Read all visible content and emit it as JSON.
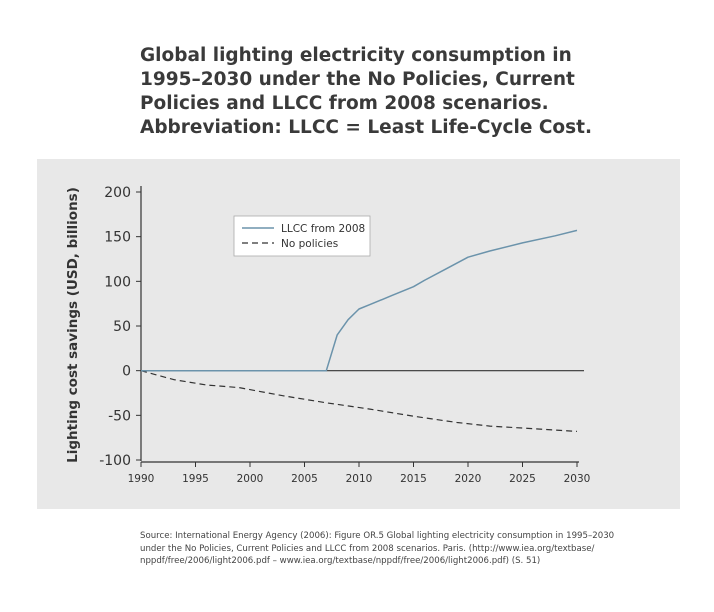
{
  "title_lines": [
    "Global lighting electricity consumption in",
    "1995–2030 under the No Policies, Current",
    "Policies and LLCC from 2008 scenarios.",
    "Abbreviation: LLCC = Least Life-Cycle Cost."
  ],
  "source_lines": [
    "Source: International Energy Agency (2006): Figure OR.5 Global lighting electricity consumption in 1995–2030",
    "under the No Policies, Current Policies and LLCC from 2008 scenarios. Paris. (http://www.iea.org/textbase/",
    "nppdf/free/2006/light2006.pdf – www.iea.org/textbase/nppdf/free/2006/light2006.pdf)  (S. 51)"
  ],
  "colors": {
    "llcc_line": "#6b93ab",
    "no_policies_line": "#333333",
    "panel_bg": "#e8e8e8"
  },
  "chart_data": {
    "type": "line",
    "title": "Global lighting electricity consumption in 1995–2030 under the No Policies, Current Policies and LLCC from 2008 scenarios. Abbreviation: LLCC = Least Life-Cycle Cost.",
    "xlabel": "",
    "ylabel": "Lighting cost savings (USD, billions)",
    "xlim": [
      1990,
      2030
    ],
    "ylim": [
      -100,
      200
    ],
    "xticks": [
      1990,
      1995,
      2000,
      2005,
      2010,
      2015,
      2020,
      2025,
      2030
    ],
    "yticks": [
      200,
      150,
      100,
      50,
      0,
      -50,
      -100
    ],
    "xtick_labels": [
      "1990",
      "1995",
      "2000",
      "2005",
      "2010",
      "2015",
      "2020",
      "2025",
      "2030"
    ],
    "ytick_labels": [
      "200",
      "150",
      "100",
      "50",
      "0",
      "-50",
      "-100"
    ],
    "zero_line": true,
    "legend_position": "top-center",
    "series": [
      {
        "name": "LLCC from 2008",
        "style": "solid",
        "x": [
          1990,
          2007,
          2008,
          2009,
          2010,
          2011,
          2013,
          2015,
          2016,
          2018,
          2020,
          2022,
          2025,
          2028,
          2030
        ],
        "y": [
          0,
          0,
          40,
          57,
          69,
          74,
          84,
          94,
          101,
          114,
          127,
          134,
          143,
          151,
          157
        ]
      },
      {
        "name": "No policies",
        "style": "dashed",
        "x": [
          1990,
          1993,
          1996,
          1999,
          2003,
          2007,
          2011,
          2015,
          2019,
          2022,
          2026,
          2030
        ],
        "y": [
          0,
          -10,
          -16,
          -19,
          -28,
          -36,
          -43,
          -51,
          -58,
          -62,
          -65,
          -68
        ]
      }
    ]
  }
}
